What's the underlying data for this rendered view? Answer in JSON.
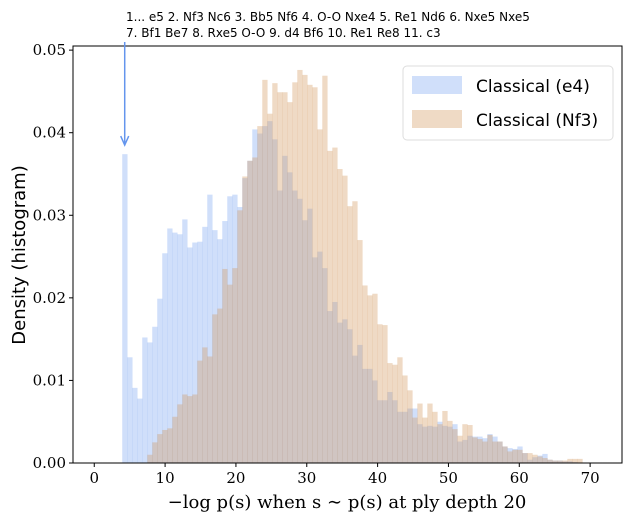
{
  "chart_data": {
    "type": "histogram",
    "xlabel": "−log p(s) when s ∼ p(s) at ply depth 20",
    "ylabel": "Density (histogram)",
    "xlim": [
      -3,
      74.5
    ],
    "ylim": [
      0,
      0.0505
    ],
    "xticks": [
      "0",
      "10",
      "20",
      "30",
      "40",
      "50",
      "60",
      "70"
    ],
    "yticks": [
      "0.00",
      "0.01",
      "0.02",
      "0.03",
      "0.04",
      "0.05"
    ],
    "legend_position": "top-right",
    "grid": false,
    "bin_start": 3.95,
    "bin_width": 0.706,
    "series": [
      {
        "name": "Classical (e4)",
        "color": "#6495ed",
        "values": [
          0.0374,
          0.0128,
          0.0091,
          0.0078,
          0.0152,
          0.0146,
          0.0165,
          0.0199,
          0.0254,
          0.0284,
          0.0279,
          0.0277,
          0.0295,
          0.0261,
          0.0267,
          0.0268,
          0.0286,
          0.0325,
          0.0282,
          0.0271,
          0.0293,
          0.0323,
          0.0325,
          0.031,
          0.0345,
          0.0366,
          0.0404,
          0.0399,
          0.0408,
          0.0414,
          0.0392,
          0.033,
          0.0372,
          0.0352,
          0.033,
          0.032,
          0.0294,
          0.0308,
          0.0249,
          0.0256,
          0.0236,
          0.0184,
          0.0195,
          0.017,
          0.0174,
          0.0162,
          0.013,
          0.0143,
          0.0114,
          0.0114,
          0.01,
          0.0076,
          0.0076,
          0.0086,
          0.0076,
          0.0062,
          0.0062,
          0.0066,
          0.0066,
          0.0047,
          0.0044,
          0.0045,
          0.0044,
          0.005,
          0.0045,
          0.0044,
          0.0047,
          0.0026,
          0.0028,
          0.0033,
          0.0032,
          0.0032,
          0.003,
          0.0035,
          0.0032,
          0.0026,
          0.002,
          0.0018,
          0.0017,
          0.002,
          0.0012,
          0.0004,
          0.0007,
          0.0009,
          0.0011,
          0.0004,
          0.0003,
          0.0003,
          0.0002,
          0.0002,
          0.0001
        ]
      },
      {
        "name": "Classical (Nf3)",
        "color": "#d2965a",
        "values": [
          0,
          0,
          0,
          0,
          0,
          0.001,
          0.0025,
          0.0035,
          0.004,
          0.0042,
          0.0056,
          0.0071,
          0.0083,
          0.0081,
          0.0083,
          0.0124,
          0.014,
          0.0129,
          0.018,
          0.0187,
          0.0235,
          0.0216,
          0.0236,
          0.0306,
          0.0347,
          0.0366,
          0.037,
          0.0408,
          0.0464,
          0.0423,
          0.046,
          0.0449,
          0.0449,
          0.0437,
          0.0461,
          0.0476,
          0.047,
          0.0458,
          0.0455,
          0.0404,
          0.0469,
          0.0378,
          0.0382,
          0.0356,
          0.0348,
          0.0311,
          0.0317,
          0.027,
          0.0215,
          0.0203,
          0.0205,
          0.0168,
          0.0167,
          0.0121,
          0.0119,
          0.0128,
          0.0106,
          0.0088,
          0.0055,
          0.0072,
          0.0055,
          0.0072,
          0.0062,
          0.0047,
          0.0063,
          0.0051,
          0.0041,
          0.0033,
          0.0047,
          0.0046,
          0.0031,
          0.0029,
          0.0026,
          0.0034,
          0.0026,
          0.0026,
          0.002,
          0.0014,
          0.0016,
          0.0016,
          0.0012,
          0.0012,
          0.001,
          0.0008,
          0.0006,
          0.0004,
          0.0003,
          0.0003,
          0.0003,
          0.0005,
          0.0005,
          0.0005
        ]
      }
    ],
    "annotation": {
      "x": 4.3,
      "line1": "1... e5 2. Nf3 Nc6 3. Bb5 Nf6 4. O-O Nxe4 5. Re1 Nd6 6. Nxe5 Nxe5",
      "line2": "7. Bf1 Be7 8. Rxe5 O-O 9. d4 Bf6 10. Re1 Re8 11. c3",
      "arrow_color": "#6495ed"
    }
  }
}
